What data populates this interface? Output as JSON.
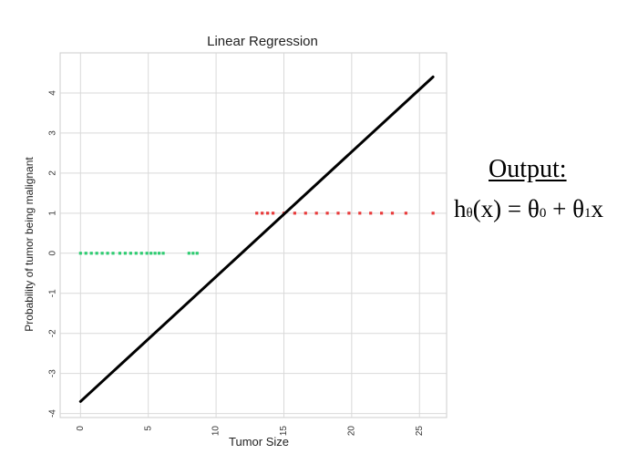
{
  "chart_data": {
    "type": "scatter",
    "title": "Linear Regression",
    "xlabel": "Tumor Size",
    "ylabel": "Probability of tumor being malignant",
    "xlim": [
      -1.5,
      27
    ],
    "ylim": [
      -4.1,
      5.0
    ],
    "xticks": [
      0,
      5,
      10,
      15,
      20,
      25
    ],
    "yticks": [
      -4,
      -3,
      -2,
      -1,
      0,
      1,
      2,
      3,
      4
    ],
    "grid": true,
    "series": [
      {
        "color": "#2ecc71",
        "x": [
          0.0,
          0.4,
          0.8,
          1.2,
          1.6,
          2.0,
          2.4,
          2.9,
          3.3,
          3.7,
          4.1,
          4.5,
          4.9,
          5.2,
          5.5,
          5.8,
          6.1,
          8.0,
          8.3,
          8.6
        ],
        "y": [
          0,
          0,
          0,
          0,
          0,
          0,
          0,
          0,
          0,
          0,
          0,
          0,
          0,
          0,
          0,
          0,
          0,
          0,
          0,
          0
        ]
      },
      {
        "color": "#e83a3a",
        "x": [
          13.0,
          13.4,
          13.8,
          14.2,
          15.0,
          15.8,
          16.6,
          17.4,
          18.2,
          19.0,
          19.8,
          20.6,
          21.4,
          22.2,
          23.0,
          24.0,
          26.0
        ],
        "y": [
          1,
          1,
          1,
          1,
          1,
          1,
          1,
          1,
          1,
          1,
          1,
          1,
          1,
          1,
          1,
          1,
          1
        ]
      }
    ],
    "fit_line": {
      "color": "#000000",
      "x": [
        0,
        26
      ],
      "y": [
        -3.7,
        4.4
      ]
    }
  },
  "annotation": {
    "output_label": "Output:",
    "formula_h": "h",
    "formula_theta_sub": "θ",
    "formula_open": "(x) = θ",
    "formula_sub0": "0",
    "formula_plus": " + θ",
    "formula_sub1": "1",
    "formula_x": "x"
  }
}
